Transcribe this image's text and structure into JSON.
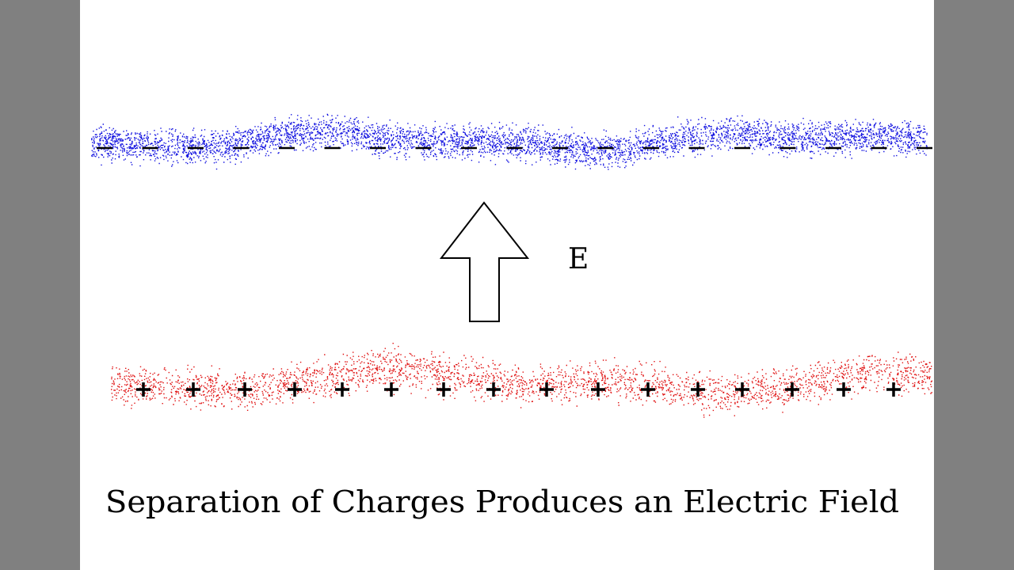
{
  "field_label": "E",
  "caption": "Separation of Charges Produces an Electric Field"
}
